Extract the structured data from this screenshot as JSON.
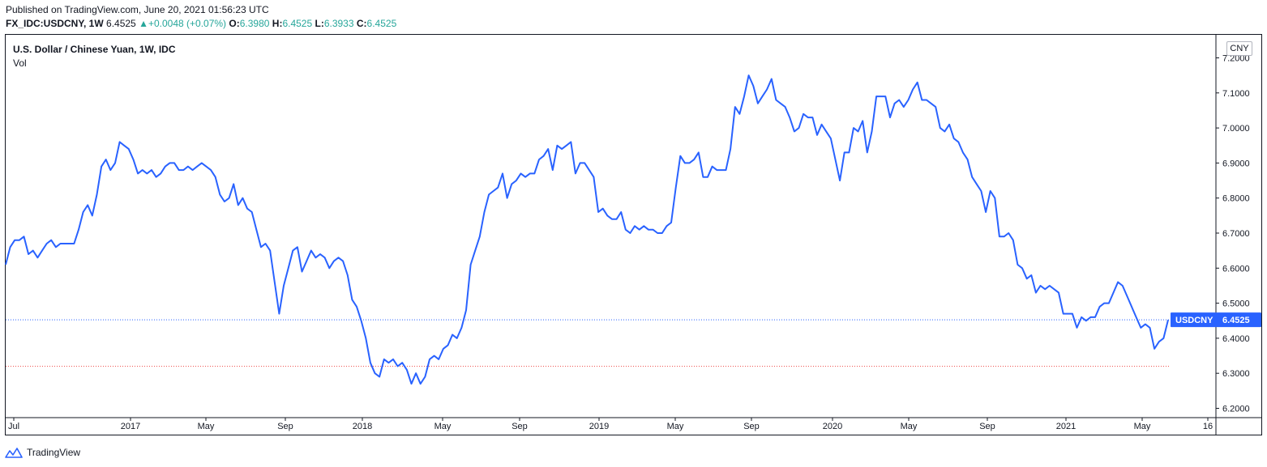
{
  "header": {
    "published": "Published on TradingView.com, June 20, 2021 01:56:23 UTC",
    "symbol": "FX_IDC:USDCNY, 1W",
    "last": "6.4525",
    "arrow": "▲",
    "change": "+0.0048 (+0.07%)",
    "o_label": "O:",
    "o_value": "6.3980",
    "h_label": "H:",
    "h_value": "6.4525",
    "l_label": "L:",
    "l_value": "6.3933",
    "c_label": "C:",
    "c_value": "6.4525"
  },
  "legend": {
    "title": "U.S. Dollar / Chinese Yuan, 1W, IDC",
    "vol": "Vol"
  },
  "currency_button": "CNY",
  "footer": {
    "brand": "TradingView"
  },
  "colors": {
    "line": "#2962ff",
    "up": "#26a69a",
    "last_label_bg": "#2962ff",
    "dotted_red": "#ef5350"
  },
  "chart_data": {
    "type": "line",
    "title": "U.S. Dollar / Chinese Yuan, 1W, IDC",
    "series": [
      {
        "name": "USDCNY",
        "values": [
          6.61,
          6.66,
          6.68,
          6.68,
          6.69,
          6.64,
          6.65,
          6.63,
          6.65,
          6.67,
          6.68,
          6.66,
          6.67,
          6.67,
          6.67,
          6.67,
          6.71,
          6.76,
          6.78,
          6.75,
          6.81,
          6.89,
          6.91,
          6.88,
          6.9,
          6.96,
          6.95,
          6.94,
          6.91,
          6.87,
          6.88,
          6.87,
          6.88,
          6.86,
          6.87,
          6.89,
          6.9,
          6.9,
          6.88,
          6.88,
          6.89,
          6.88,
          6.89,
          6.9,
          6.89,
          6.88,
          6.86,
          6.81,
          6.79,
          6.8,
          6.84,
          6.78,
          6.8,
          6.77,
          6.76,
          6.71,
          6.66,
          6.67,
          6.65,
          6.56,
          6.47,
          6.55,
          6.6,
          6.65,
          6.66,
          6.59,
          6.62,
          6.65,
          6.63,
          6.64,
          6.63,
          6.6,
          6.62,
          6.63,
          6.62,
          6.58,
          6.51,
          6.49,
          6.45,
          6.4,
          6.33,
          6.3,
          6.29,
          6.34,
          6.33,
          6.34,
          6.32,
          6.33,
          6.31,
          6.27,
          6.3,
          6.27,
          6.29,
          6.34,
          6.35,
          6.34,
          6.37,
          6.38,
          6.41,
          6.4,
          6.43,
          6.48,
          6.61,
          6.65,
          6.69,
          6.76,
          6.81,
          6.82,
          6.83,
          6.87,
          6.8,
          6.84,
          6.85,
          6.87,
          6.86,
          6.87,
          6.87,
          6.91,
          6.92,
          6.94,
          6.88,
          6.95,
          6.94,
          6.95,
          6.96,
          6.87,
          6.9,
          6.9,
          6.88,
          6.86,
          6.76,
          6.77,
          6.75,
          6.74,
          6.74,
          6.76,
          6.71,
          6.7,
          6.72,
          6.71,
          6.72,
          6.71,
          6.71,
          6.7,
          6.7,
          6.72,
          6.73,
          6.83,
          6.92,
          6.9,
          6.9,
          6.91,
          6.93,
          6.86,
          6.86,
          6.89,
          6.88,
          6.88,
          6.88,
          6.94,
          7.06,
          7.04,
          7.09,
          7.15,
          7.12,
          7.07,
          7.09,
          7.11,
          7.14,
          7.08,
          7.07,
          7.06,
          7.03,
          6.99,
          7.0,
          7.04,
          7.03,
          7.03,
          6.98,
          7.01,
          6.99,
          6.97,
          6.91,
          6.85,
          6.93,
          6.93,
          7.0,
          6.99,
          7.02,
          6.93,
          6.99,
          7.09,
          7.09,
          7.09,
          7.03,
          7.07,
          7.08,
          7.06,
          7.08,
          7.11,
          7.13,
          7.08,
          7.08,
          7.07,
          7.06,
          7.0,
          6.99,
          7.01,
          6.97,
          6.96,
          6.93,
          6.91,
          6.86,
          6.84,
          6.82,
          6.76,
          6.82,
          6.8,
          6.69,
          6.69,
          6.7,
          6.68,
          6.61,
          6.6,
          6.57,
          6.58,
          6.53,
          6.55,
          6.54,
          6.55,
          6.54,
          6.53,
          6.47,
          6.47,
          6.47,
          6.43,
          6.46,
          6.45,
          6.46,
          6.46,
          6.49,
          6.5,
          6.5,
          6.53,
          6.56,
          6.55,
          6.52,
          6.49,
          6.46,
          6.43,
          6.44,
          6.43,
          6.37,
          6.39,
          6.4,
          6.4525
        ]
      }
    ],
    "x_labels": [
      "Jul",
      "2017",
      "May",
      "Sep",
      "2018",
      "May",
      "Sep",
      "2019",
      "May",
      "Sep",
      "2020",
      "May",
      "Sep",
      "2021",
      "May",
      "16"
    ],
    "y_ticks": [
      "7.2000",
      "7.1000",
      "7.0000",
      "6.9000",
      "6.8000",
      "6.7000",
      "6.6000",
      "6.5000",
      "6.4000",
      "6.3000",
      "6.2000"
    ],
    "ylim": [
      6.2,
      7.2
    ],
    "last_label": "USDCNY",
    "last_value": "6.4525",
    "reference_line": 6.32,
    "grid": false
  }
}
